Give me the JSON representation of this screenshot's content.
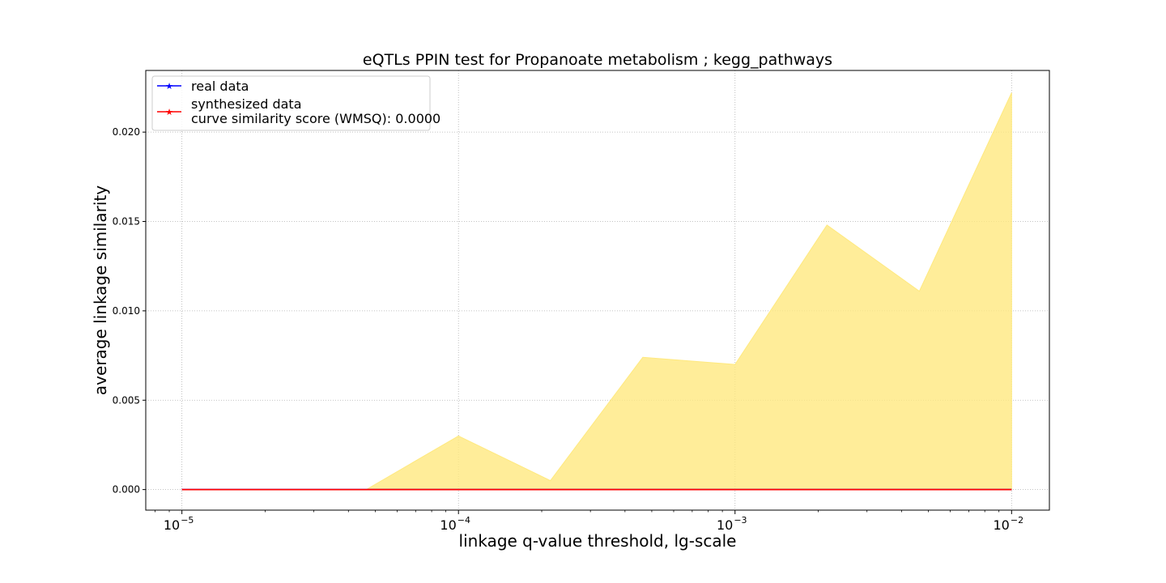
{
  "chart_data": {
    "type": "line",
    "title": "eQTLs PPIN test for Propanoate metabolism ; kegg_pathways",
    "xlabel": "linkage q-value threshold, lg-scale",
    "ylabel": "average linkage similarity",
    "x_scale": "log10",
    "xlim": [
      7.4e-06,
      0.0137
    ],
    "ylim": [
      -0.00115,
      0.02345
    ],
    "x_ticks": [
      {
        "value": 1e-05,
        "base": "10",
        "exp": "−5"
      },
      {
        "value": 0.0001,
        "base": "10",
        "exp": "−4"
      },
      {
        "value": 0.001,
        "base": "10",
        "exp": "−3"
      },
      {
        "value": 0.01,
        "base": "10",
        "exp": "−2"
      }
    ],
    "y_ticks": [
      {
        "value": 0.0,
        "label": "0.000"
      },
      {
        "value": 0.005,
        "label": "0.005"
      },
      {
        "value": 0.01,
        "label": "0.010"
      },
      {
        "value": 0.015,
        "label": "0.015"
      },
      {
        "value": 0.02,
        "label": "0.020"
      }
    ],
    "grid": true,
    "legend_position": "top-left",
    "x": [
      1e-05,
      2.15e-05,
      4.64e-05,
      0.0001,
      0.000215,
      0.000464,
      0.001,
      0.00215,
      0.00464,
      0.01
    ],
    "series": [
      {
        "name": "real data",
        "color": "#0000ff",
        "marker": "star",
        "values": [
          0,
          0,
          0,
          0,
          0,
          0,
          0,
          0,
          0,
          0
        ]
      },
      {
        "name": "synthesized data",
        "color": "#ff0000",
        "marker": "star",
        "values": [
          0,
          0,
          0,
          0,
          0,
          0,
          0,
          0,
          0,
          0
        ]
      }
    ],
    "band": {
      "color": "#ffe97f",
      "lower": [
        0,
        0,
        0,
        0,
        0,
        0,
        0,
        0,
        0,
        0
      ],
      "upper": [
        0,
        0,
        0,
        0.003,
        0.0005,
        0.0074,
        0.007,
        0.0148,
        0.0111,
        0.0222
      ]
    },
    "legend": {
      "entries": [
        {
          "lines": [
            "real data"
          ],
          "color": "#0000ff"
        },
        {
          "lines": [
            "synthesized data",
            "curve similarity score (WMSQ): 0.0000"
          ],
          "color": "#ff0000"
        }
      ]
    }
  }
}
